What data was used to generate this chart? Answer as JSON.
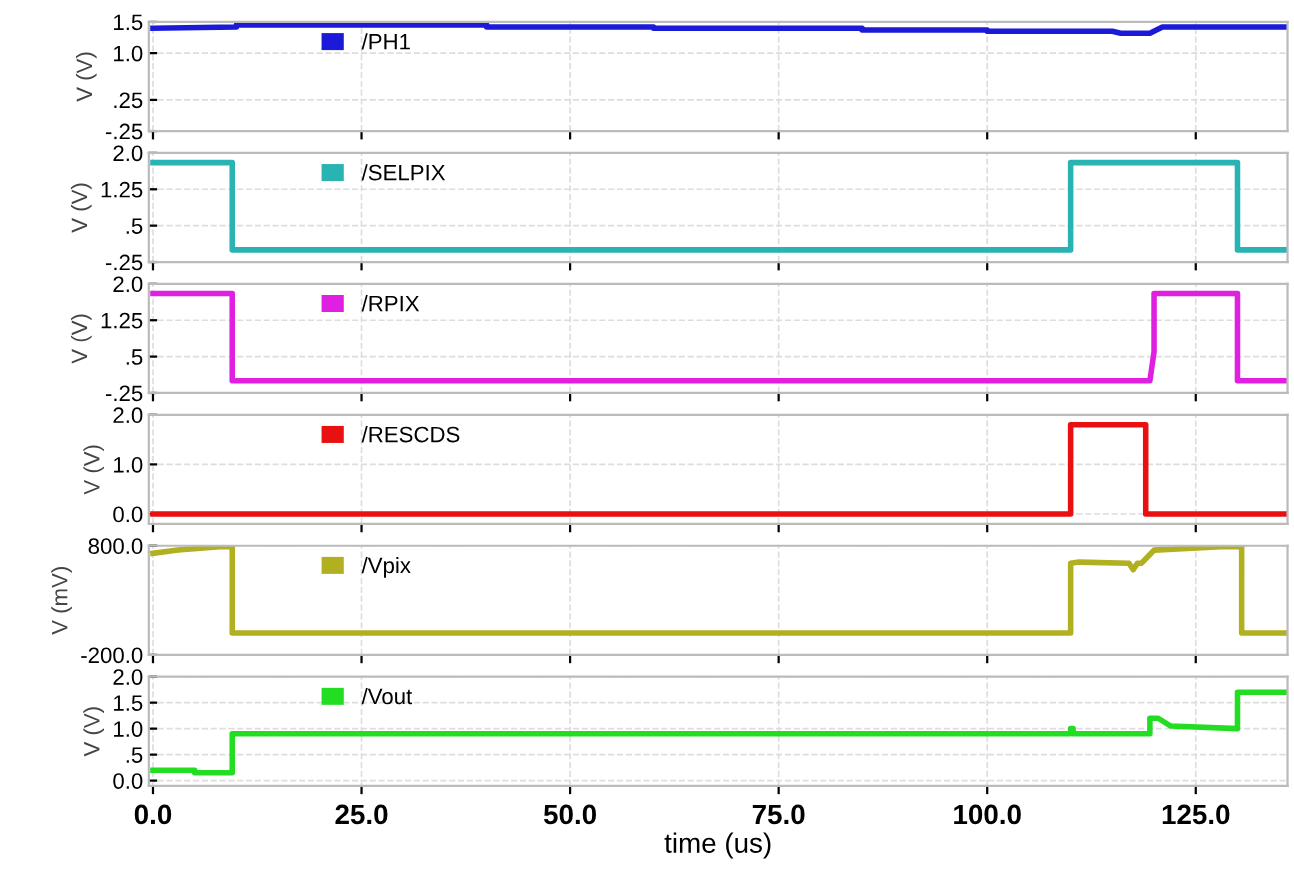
{
  "chart_data": [
    {
      "type": "line",
      "ylabel": "V (V)",
      "xlim": [
        -0.5,
        136
      ],
      "xticks": [
        {
          "value": 0,
          "label": null
        },
        {
          "value": 25,
          "label": null
        },
        {
          "value": 50,
          "label": null
        },
        {
          "value": 75,
          "label": null
        },
        {
          "value": 100,
          "label": null
        },
        {
          "value": 125,
          "label": null
        }
      ],
      "ylim": [
        -0.25,
        1.5
      ],
      "yticks": [
        {
          "value": -0.25,
          "label": "-.25"
        },
        {
          "value": 0.25,
          "label": ".25"
        },
        {
          "value": 1.0,
          "label": "1.0"
        },
        {
          "value": 1.5,
          "label": "1.5"
        }
      ],
      "grid": true,
      "legend": "top left",
      "tick_labels": "y",
      "series": [
        {
          "name": "/PH1",
          "color": "#1a1ad8",
          "x": [
            0,
            10,
            10,
            40,
            40,
            60,
            60,
            85,
            85,
            100,
            100,
            115,
            116,
            119.5,
            121,
            136
          ],
          "values": [
            1.4,
            1.42,
            1.45,
            1.45,
            1.42,
            1.42,
            1.4,
            1.4,
            1.37,
            1.37,
            1.35,
            1.35,
            1.32,
            1.32,
            1.42,
            1.42
          ]
        }
      ]
    },
    {
      "type": "line",
      "ylabel": "V (V)",
      "xlim": [
        -0.5,
        136
      ],
      "xticks": [
        {
          "value": 0,
          "label": null
        },
        {
          "value": 25,
          "label": null
        },
        {
          "value": 50,
          "label": null
        },
        {
          "value": 75,
          "label": null
        },
        {
          "value": 100,
          "label": null
        },
        {
          "value": 125,
          "label": null
        }
      ],
      "ylim": [
        -0.25,
        2.0
      ],
      "yticks": [
        {
          "value": -0.25,
          "label": "-.25"
        },
        {
          "value": 0.5,
          "label": ".5"
        },
        {
          "value": 1.25,
          "label": "1.25"
        },
        {
          "value": 2.0,
          "label": "2.0"
        }
      ],
      "grid": true,
      "legend": "top left",
      "tick_labels": "y",
      "series": [
        {
          "name": "/SELPIX",
          "color": "#2ab3b3",
          "x": [
            0,
            9.5,
            9.5,
            110,
            110,
            130,
            130,
            136
          ],
          "values": [
            1.8,
            1.8,
            0,
            0,
            1.8,
            1.8,
            0,
            0
          ]
        }
      ]
    },
    {
      "type": "line",
      "ylabel": "V (V)",
      "xlim": [
        -0.5,
        136
      ],
      "xticks": [
        {
          "value": 0,
          "label": null
        },
        {
          "value": 25,
          "label": null
        },
        {
          "value": 50,
          "label": null
        },
        {
          "value": 75,
          "label": null
        },
        {
          "value": 100,
          "label": null
        },
        {
          "value": 125,
          "label": null
        }
      ],
      "ylim": [
        -0.25,
        2.0
      ],
      "yticks": [
        {
          "value": -0.25,
          "label": "-.25"
        },
        {
          "value": 0.5,
          "label": ".5"
        },
        {
          "value": 1.25,
          "label": "1.25"
        },
        {
          "value": 2.0,
          "label": "2.0"
        }
      ],
      "grid": true,
      "legend": "top left",
      "tick_labels": "y",
      "series": [
        {
          "name": "/RPIX",
          "color": "#e020e0",
          "x": [
            0,
            9.5,
            9.5,
            119.5,
            120,
            120,
            130,
            130,
            136
          ],
          "values": [
            1.8,
            1.8,
            0,
            0,
            0.6,
            1.8,
            1.8,
            0,
            0
          ]
        }
      ]
    },
    {
      "type": "line",
      "ylabel": "V (V)",
      "xlim": [
        -0.5,
        136
      ],
      "xticks": [
        {
          "value": 0,
          "label": null
        },
        {
          "value": 25,
          "label": null
        },
        {
          "value": 50,
          "label": null
        },
        {
          "value": 75,
          "label": null
        },
        {
          "value": 100,
          "label": null
        },
        {
          "value": 125,
          "label": null
        }
      ],
      "ylim": [
        -0.2,
        2.0
      ],
      "yticks": [
        {
          "value": 0,
          "label": "0.0"
        },
        {
          "value": 1.0,
          "label": "1.0"
        },
        {
          "value": 2.0,
          "label": "2.0"
        }
      ],
      "grid": true,
      "legend": "top left",
      "tick_labels": "y",
      "series": [
        {
          "name": "/RESCDS",
          "color": "#e81010",
          "x": [
            0,
            110,
            110,
            119,
            119,
            136
          ],
          "values": [
            0,
            0,
            1.8,
            1.8,
            0,
            0
          ]
        }
      ]
    },
    {
      "type": "line",
      "ylabel": "V (mV)",
      "xlim": [
        -0.5,
        136
      ],
      "xticks": [
        {
          "value": 0,
          "label": null
        },
        {
          "value": 25,
          "label": null
        },
        {
          "value": 50,
          "label": null
        },
        {
          "value": 75,
          "label": null
        },
        {
          "value": 100,
          "label": null
        },
        {
          "value": 125,
          "label": null
        }
      ],
      "ylim": [
        -200,
        800
      ],
      "yticks": [
        {
          "value": -200,
          "label": "-200.0"
        },
        {
          "value": 800,
          "label": "800.0"
        }
      ],
      "grid": true,
      "legend": "top left",
      "tick_labels": "y",
      "series": [
        {
          "name": "/Vpix",
          "color": "#b0b020",
          "x": [
            0,
            3,
            8,
            9.5,
            9.5,
            110,
            110,
            111,
            117,
            117.5,
            118,
            118.5,
            119.5,
            120,
            128,
            130.5,
            130.5,
            136
          ],
          "values": [
            730,
            760,
            790,
            790,
            0,
            0,
            640,
            650,
            640,
            580,
            640,
            640,
            720,
            760,
            790,
            790,
            0,
            0
          ]
        }
      ]
    },
    {
      "type": "line",
      "ylabel": "V (V)",
      "xlabel": "time (us)",
      "xlim": [
        -0.5,
        136
      ],
      "xticks": [
        {
          "value": 0,
          "label": "0.0"
        },
        {
          "value": 25,
          "label": "25.0"
        },
        {
          "value": 50,
          "label": "50.0"
        },
        {
          "value": 75,
          "label": "75.0"
        },
        {
          "value": 100,
          "label": "100.0"
        },
        {
          "value": 125,
          "label": "125.0"
        }
      ],
      "ylim": [
        -0.1,
        2.0
      ],
      "yticks": [
        {
          "value": 0,
          "label": "0.0"
        },
        {
          "value": 0.5,
          "label": ".5"
        },
        {
          "value": 1.0,
          "label": "1.0"
        },
        {
          "value": 1.5,
          "label": "1.5"
        },
        {
          "value": 2.0,
          "label": "2.0"
        }
      ],
      "grid": true,
      "legend": "top left",
      "series": [
        {
          "name": "/Vout",
          "color": "#22dd22",
          "x": [
            0,
            5,
            5,
            9.5,
            9.5,
            110,
            110,
            110.3,
            110.3,
            119.5,
            119.5,
            120.5,
            122,
            130,
            130,
            136
          ],
          "values": [
            0.2,
            0.2,
            0.15,
            0.15,
            0.9,
            0.9,
            1.0,
            1.0,
            0.9,
            0.9,
            1.2,
            1.2,
            1.05,
            1.0,
            1.7,
            1.7
          ]
        }
      ]
    }
  ]
}
